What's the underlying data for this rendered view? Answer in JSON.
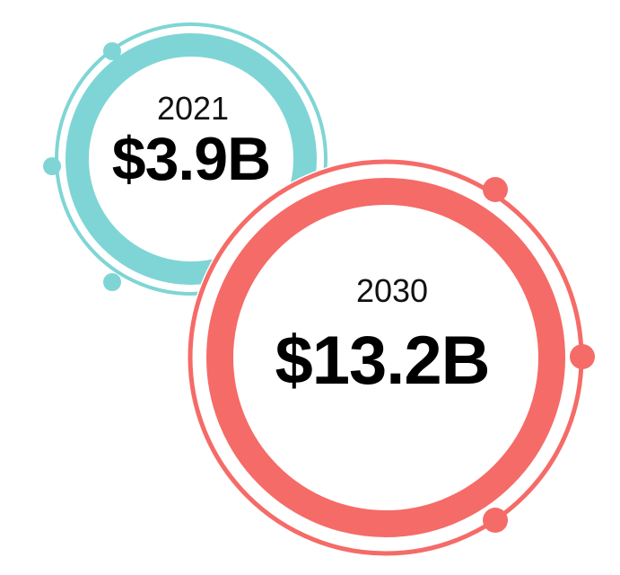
{
  "circles": [
    {
      "year": "2021",
      "value": "$3.9B",
      "color": "#7fd5d5"
    },
    {
      "year": "2030",
      "value": "$13.2B",
      "color": "#f56b67"
    }
  ]
}
